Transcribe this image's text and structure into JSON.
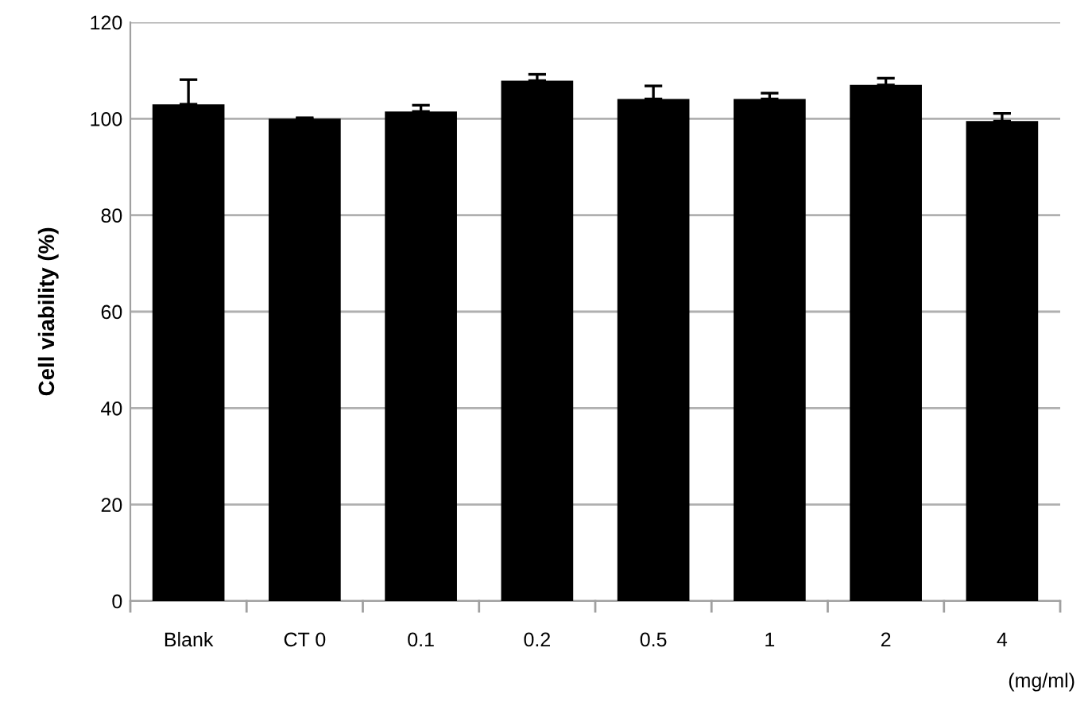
{
  "chart_data": {
    "type": "bar",
    "ylabel": "Cell viability (%)",
    "xlabel": "(mg/ml)",
    "categories": [
      "Blank",
      "CT 0",
      "0.1",
      "0.2",
      "0.5",
      "1",
      "2",
      "4"
    ],
    "values": [
      103,
      100,
      101.5,
      107.9,
      104.1,
      104.1,
      107,
      99.5
    ],
    "errors": [
      [
        103,
        108.1
      ],
      [
        100,
        100.2
      ],
      [
        101.5,
        102.8
      ],
      [
        107.9,
        109.2
      ],
      [
        104.1,
        106.8
      ],
      [
        104.1,
        105.3
      ],
      [
        107,
        108.4
      ],
      [
        99.5,
        101.1
      ]
    ],
    "color": "#000000",
    "ylim": [
      0,
      120
    ],
    "yticks": [
      0,
      20,
      40,
      60,
      80,
      100,
      120
    ],
    "grid": "y"
  }
}
